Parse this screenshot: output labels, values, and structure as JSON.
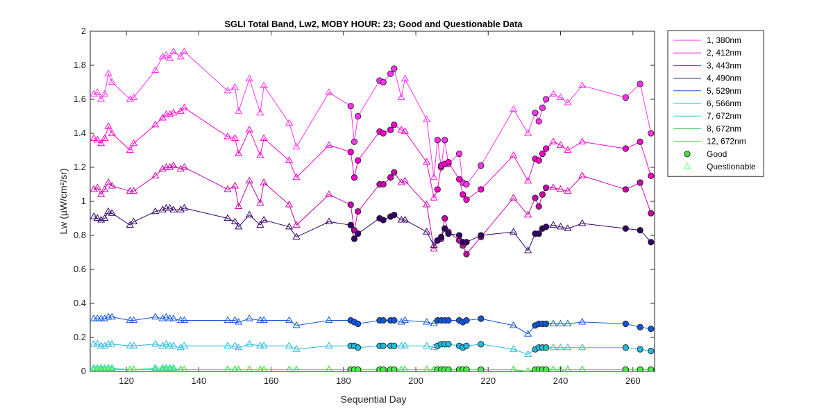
{
  "chart_data": {
    "type": "line",
    "title": "SGLI Total Band,  Lw2, MOBY HOUR: 23;  Good and Questionable Data",
    "xlabel": "Sequential Day",
    "ylabel": "Lw (µW/cm²/sr)",
    "xlim": [
      110,
      266
    ],
    "ylim": [
      0,
      2
    ],
    "xticks": [
      120,
      140,
      160,
      180,
      200,
      220,
      240,
      260
    ],
    "yticks": [
      0,
      0.2,
      0.4,
      0.6,
      0.8,
      1,
      1.2,
      1.4,
      1.6,
      1.8,
      2
    ],
    "ytick_labels": [
      "0",
      "0.2",
      "0.4",
      "0.6",
      "0.8",
      "1",
      "1.2",
      "1.4",
      "1.6",
      "1.8",
      "2"
    ],
    "grid": false,
    "legend_position": "outside-right",
    "x": [
      111,
      112,
      113,
      114,
      115,
      116,
      121,
      122,
      128,
      130,
      131,
      132,
      133,
      135,
      136,
      148,
      150,
      151,
      154,
      157,
      158,
      165,
      167,
      176,
      182,
      183,
      184,
      190,
      191,
      193,
      194,
      196,
      197,
      203,
      205,
      206,
      207,
      208,
      209,
      212,
      213,
      214,
      218,
      227,
      231,
      233,
      234,
      235,
      236,
      238,
      240,
      242,
      246,
      258,
      262,
      265
    ],
    "quality": [
      "q",
      "q",
      "q",
      "q",
      "q",
      "q",
      "q",
      "q",
      "q",
      "q",
      "q",
      "q",
      "q",
      "q",
      "q",
      "q",
      "q",
      "q",
      "q",
      "q",
      "q",
      "q",
      "q",
      "q",
      "g",
      "g",
      "g",
      "g",
      "g",
      "g",
      "g",
      "q",
      "q",
      "q",
      "q",
      "g",
      "g",
      "g",
      "g",
      "g",
      "g",
      "g",
      "g",
      "q",
      "q",
      "g",
      "g",
      "g",
      "g",
      "q",
      "q",
      "q",
      "q",
      "g",
      "g",
      "g"
    ],
    "series": [
      {
        "name": "1, 380nm",
        "color": "#ff33ee",
        "values": [
          1.63,
          1.64,
          1.6,
          1.63,
          1.75,
          1.7,
          1.6,
          1.61,
          1.77,
          1.85,
          1.86,
          1.84,
          1.88,
          1.85,
          1.88,
          1.65,
          1.67,
          1.53,
          1.72,
          1.52,
          1.68,
          1.46,
          1.32,
          1.64,
          1.56,
          1.35,
          1.5,
          1.71,
          1.7,
          1.75,
          1.78,
          1.61,
          1.72,
          1.48,
          1.14,
          1.36,
          1.2,
          1.36,
          1.22,
          1.28,
          1.11,
          1.1,
          1.21,
          1.54,
          1.4,
          1.52,
          1.47,
          1.55,
          1.6,
          1.63,
          1.61,
          1.58,
          1.68,
          1.61,
          1.69,
          1.4
        ]
      },
      {
        "name": "2, 412nm",
        "color": "#ff00cc",
        "values": [
          1.37,
          1.36,
          1.34,
          1.37,
          1.44,
          1.4,
          1.3,
          1.34,
          1.45,
          1.49,
          1.51,
          1.51,
          1.52,
          1.53,
          1.55,
          1.38,
          1.37,
          1.28,
          1.42,
          1.27,
          1.37,
          1.24,
          1.14,
          1.33,
          1.29,
          1.14,
          1.24,
          1.41,
          1.4,
          1.42,
          1.45,
          1.42,
          1.41,
          1.23,
          1.02,
          1.07,
          1.21,
          1.22,
          1.23,
          1.13,
          1.04,
          1.01,
          1.07,
          1.27,
          1.12,
          1.25,
          1.24,
          1.28,
          1.31,
          1.35,
          1.33,
          1.3,
          1.35,
          1.31,
          1.35,
          1.15
        ]
      },
      {
        "name": "3, 443nm",
        "color": "#cc00aa",
        "values": [
          1.07,
          1.08,
          1.04,
          1.07,
          1.11,
          1.09,
          1.06,
          1.06,
          1.15,
          1.19,
          1.2,
          1.2,
          1.21,
          1.19,
          1.2,
          1.07,
          1.09,
          0.97,
          1.12,
          0.99,
          1.11,
          0.98,
          0.86,
          1.04,
          0.98,
          0.83,
          0.94,
          1.1,
          1.1,
          1.14,
          1.17,
          1.11,
          1.12,
          0.98,
          0.72,
          0.77,
          0.78,
          0.9,
          0.82,
          0.77,
          0.74,
          0.69,
          0.79,
          1.02,
          0.92,
          1.02,
          0.97,
          1.04,
          1.08,
          1.08,
          1.07,
          1.06,
          1.15,
          1.07,
          1.11,
          0.93
        ]
      },
      {
        "name": "4, 490nm",
        "color": "#330066",
        "values": [
          0.91,
          0.9,
          0.89,
          0.9,
          0.94,
          0.93,
          0.86,
          0.88,
          0.94,
          0.95,
          0.96,
          0.96,
          0.95,
          0.95,
          0.96,
          0.9,
          0.88,
          0.85,
          0.92,
          0.86,
          0.89,
          0.85,
          0.79,
          0.88,
          0.86,
          0.78,
          0.81,
          0.9,
          0.89,
          0.91,
          0.92,
          0.89,
          0.89,
          0.82,
          0.74,
          0.77,
          0.79,
          0.84,
          0.81,
          0.8,
          0.76,
          0.76,
          0.8,
          0.82,
          0.71,
          0.81,
          0.81,
          0.84,
          0.85,
          0.86,
          0.85,
          0.84,
          0.87,
          0.84,
          0.83,
          0.76
        ]
      },
      {
        "name": "5, 529nm",
        "color": "#1155dd",
        "values": [
          0.31,
          0.31,
          0.31,
          0.31,
          0.32,
          0.32,
          0.3,
          0.3,
          0.32,
          0.31,
          0.32,
          0.31,
          0.31,
          0.3,
          0.3,
          0.3,
          0.3,
          0.29,
          0.31,
          0.3,
          0.3,
          0.3,
          0.27,
          0.3,
          0.3,
          0.29,
          0.28,
          0.3,
          0.3,
          0.3,
          0.3,
          0.29,
          0.3,
          0.29,
          0.28,
          0.3,
          0.3,
          0.3,
          0.3,
          0.3,
          0.29,
          0.3,
          0.31,
          0.27,
          0.22,
          0.27,
          0.28,
          0.28,
          0.28,
          0.28,
          0.28,
          0.28,
          0.29,
          0.28,
          0.26,
          0.25
        ]
      },
      {
        "name": "6, 566nm",
        "color": "#22bbdd",
        "values": [
          0.16,
          0.16,
          0.15,
          0.15,
          0.16,
          0.16,
          0.15,
          0.15,
          0.16,
          0.15,
          0.16,
          0.15,
          0.15,
          0.14,
          0.15,
          0.15,
          0.15,
          0.14,
          0.16,
          0.15,
          0.15,
          0.15,
          0.13,
          0.15,
          0.15,
          0.15,
          0.14,
          0.15,
          0.15,
          0.15,
          0.15,
          0.15,
          0.15,
          0.15,
          0.14,
          0.15,
          0.16,
          0.16,
          0.16,
          0.15,
          0.14,
          0.15,
          0.16,
          0.13,
          0.1,
          0.13,
          0.14,
          0.14,
          0.14,
          0.14,
          0.14,
          0.14,
          0.14,
          0.14,
          0.13,
          0.12
        ]
      },
      {
        "name": "7, 672nm",
        "color": "#22ddbb",
        "values": [
          0.02,
          0.02,
          0.02,
          0.02,
          0.02,
          0.02,
          0.01,
          0.01,
          0.02,
          0.02,
          0.02,
          0.02,
          0.02,
          0.01,
          0.01,
          0.01,
          0.01,
          0.01,
          0.01,
          0.01,
          0.01,
          0.01,
          0.01,
          0.01,
          0.01,
          0.01,
          0.01,
          0.01,
          0.01,
          0.01,
          0.01,
          0.01,
          0.01,
          0.01,
          0.01,
          0.01,
          0.01,
          0.01,
          0.01,
          0.01,
          0.01,
          0.01,
          0.01,
          0.01,
          0.0,
          0.01,
          0.01,
          0.01,
          0.01,
          0.01,
          0.01,
          0.01,
          0.01,
          0.01,
          0.01,
          0.01
        ]
      },
      {
        "name": "8, 672nm",
        "color": "#22cc44",
        "values": [
          0.01,
          0.01,
          0.01,
          0.01,
          0.01,
          0.01,
          0.01,
          0.01,
          0.01,
          0.01,
          0.01,
          0.01,
          0.01,
          0.01,
          0.01,
          0.01,
          0.01,
          0.01,
          0.01,
          0.01,
          0.01,
          0.01,
          0.01,
          0.01,
          0.01,
          0.01,
          0.01,
          0.01,
          0.01,
          0.01,
          0.01,
          0.01,
          0.01,
          0.01,
          0.01,
          0.01,
          0.01,
          0.01,
          0.01,
          0.01,
          0.01,
          0.01,
          0.01,
          0.01,
          0.0,
          0.01,
          0.01,
          0.01,
          0.01,
          0.01,
          0.01,
          0.01,
          0.01,
          0.01,
          0.01,
          0.01
        ]
      },
      {
        "name": "12, 672nm",
        "color": "#44ee44",
        "values": [
          0.01,
          0.01,
          0.01,
          0.01,
          0.01,
          0.01,
          0.01,
          0.01,
          0.01,
          0.01,
          0.01,
          0.01,
          0.01,
          0.01,
          0.01,
          0.01,
          0.01,
          0.01,
          0.01,
          0.01,
          0.01,
          0.01,
          0.01,
          0.01,
          0.01,
          0.01,
          0.01,
          0.01,
          0.01,
          0.01,
          0.01,
          0.01,
          0.01,
          0.01,
          0.01,
          0.01,
          0.01,
          0.01,
          0.01,
          0.01,
          0.01,
          0.01,
          0.01,
          0.01,
          0.0,
          0.01,
          0.01,
          0.01,
          0.01,
          0.01,
          0.01,
          0.01,
          0.01,
          0.01,
          0.01,
          0.01
        ]
      }
    ],
    "marker_legend": [
      {
        "name": "Good",
        "marker": "circle",
        "color": "#44dd44"
      },
      {
        "name": "Questionable",
        "marker": "triangle",
        "color": "#66ff66"
      }
    ]
  }
}
